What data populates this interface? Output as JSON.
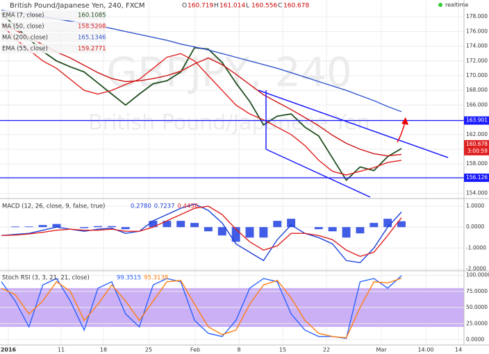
{
  "chart_data": [
    {
      "type": "line",
      "title": "British Pound/Japanese Yen, 240, FXCM",
      "watermark": "GBPJPY, 240",
      "watermark_subtitle": "British Pound/Japanese Yen",
      "status": "realtime",
      "ohlc_labels": [
        "O",
        "H",
        "L",
        "C"
      ],
      "ohlc": [
        160.719,
        161.014,
        160.556,
        160.678
      ],
      "countdown": "3:00:59",
      "levels": [
        {
          "value": 163.901,
          "color": "#1a1aff"
        },
        {
          "value": 156.126,
          "color": "#1a1aff"
        }
      ],
      "ylim": [
        153.4,
        179.9
      ],
      "yticks": [
        {
          "value": 154,
          "label": "154.000"
        },
        {
          "value": 156,
          "label": "156.000"
        },
        {
          "value": 158,
          "label": "158.000"
        },
        {
          "value": 160,
          "label": "160.000"
        },
        {
          "value": 162,
          "label": "162.000"
        },
        {
          "value": 164,
          "label": "164.000"
        },
        {
          "value": 166,
          "label": "166.000"
        },
        {
          "value": 168,
          "label": "168.000"
        },
        {
          "value": 170,
          "label": "170.000"
        },
        {
          "value": 172,
          "label": "172.000"
        },
        {
          "value": 174,
          "label": "174.000"
        },
        {
          "value": 176,
          "label": "176.000"
        },
        {
          "value": 178,
          "label": "178.000"
        }
      ],
      "series": [
        {
          "name": "EMA (7, close)",
          "color": "#1e4d1e",
          "last": 160.1085,
          "values": [
            178.5,
            176.7,
            175,
            173.3,
            172,
            171.2,
            170.5,
            169,
            167.5,
            166,
            167.5,
            168.9,
            169.3,
            170.5,
            173.8,
            173.6,
            171.8,
            169,
            166.5,
            163.3,
            164.5,
            164.8,
            163,
            161.8,
            158.8,
            155.8,
            157.6,
            157.1,
            159,
            160.1
          ]
        },
        {
          "name": "MA (50, close)",
          "color": "#e02020",
          "last": 158.5208,
          "values": [
            177,
            175,
            173.5,
            172,
            171,
            169.5,
            168,
            167.5,
            168,
            168.8,
            169.5,
            171,
            172.5,
            173,
            172,
            170,
            168,
            166,
            164.8,
            164,
            163,
            162,
            160.5,
            158.5,
            157,
            156.5,
            157,
            157.5,
            158.2,
            158.5
          ]
        },
        {
          "name": "MA (200, close)",
          "color": "#3355cc",
          "last": 165.1346,
          "values": [
            178.9,
            178.6,
            178.3,
            178,
            177.7,
            177.4,
            177.1,
            176.8,
            176.4,
            176,
            175.6,
            175.2,
            174.8,
            174.3,
            173.9,
            173.5,
            173,
            172.5,
            172,
            171.5,
            171,
            170.4,
            169.8,
            169.2,
            168.6,
            168,
            167.3,
            166.6,
            165.8,
            165.1
          ]
        },
        {
          "name": "EMA (55, close)",
          "color": "#cc1111",
          "last": 159.2771,
          "values": [
            177.1,
            176.2,
            175.2,
            174.2,
            173.2,
            172.4,
            171.4,
            170.4,
            169.6,
            169.2,
            169.3,
            169.6,
            170,
            170.6,
            171.6,
            172.4,
            171.5,
            170.2,
            168.8,
            167.4,
            166.4,
            165.4,
            164.3,
            163.2,
            161.9,
            160.8,
            160,
            159.4,
            159.1,
            159.3
          ]
        }
      ]
    },
    {
      "type": "line",
      "title": "MACD (12, 26, close, 9, false, true)",
      "ylim": [
        -2.05,
        1.3
      ],
      "yticks": [
        {
          "value": 1,
          "label": "1.0000"
        },
        {
          "value": 0,
          "label": "0.0000"
        },
        {
          "value": -1,
          "label": "-1.0000"
        },
        {
          "value": -2,
          "label": "-2.0000"
        }
      ],
      "series": [
        {
          "kind": "bar",
          "color": "#2040e0",
          "last": {
            "value": 0.278,
            "label": "0.2780"
          },
          "values": [
            0,
            0.03,
            0.03,
            0.1,
            0.15,
            0,
            -0.05,
            0.05,
            0.05,
            -0.1,
            0,
            0.3,
            0.3,
            0.3,
            0.2,
            -0.2,
            -0.4,
            -0.7,
            -0.5,
            -0.5,
            0.3,
            0.4,
            0,
            -0.1,
            -0.2,
            -0.5,
            -0.3,
            0.2,
            0.4,
            0.28
          ]
        },
        {
          "color": "#1a3fd6",
          "last": 0.7237,
          "values": [
            -0.4,
            -0.35,
            -0.3,
            -0.15,
            0,
            -0.1,
            -0.2,
            -0.1,
            -0.05,
            -0.3,
            -0.2,
            0.3,
            0.6,
            0.9,
            1.1,
            0.8,
            0.2,
            -0.8,
            -1.2,
            -1.6,
            -0.6,
            0.1,
            -0.3,
            -0.5,
            -0.8,
            -1.6,
            -1.7,
            -1,
            0,
            0.72
          ]
        },
        {
          "color": "#e02020",
          "last": 0.4456,
          "values": [
            -0.4,
            -0.38,
            -0.33,
            -0.25,
            -0.15,
            -0.1,
            -0.15,
            -0.15,
            -0.1,
            -0.2,
            -0.2,
            0,
            0.3,
            0.6,
            0.9,
            1,
            0.6,
            -0.1,
            -0.7,
            -1.1,
            -0.9,
            -0.3,
            -0.3,
            -0.4,
            -0.6,
            -1.1,
            -1.4,
            -1.2,
            -0.4,
            0.45
          ]
        }
      ]
    },
    {
      "type": "line",
      "title": "Stoch RSI (3, 3, 21, 21, close)",
      "band": [
        20,
        80
      ],
      "band_color": "#cbb0f5",
      "ylim": [
        -7,
        106
      ],
      "yticks": [
        {
          "value": 100,
          "label": "100.0000"
        },
        {
          "value": 75,
          "label": "75.0000"
        },
        {
          "value": 50,
          "label": "50.0000"
        },
        {
          "value": 25,
          "label": "25.0000"
        },
        {
          "value": 0,
          "label": "0.0000"
        }
      ],
      "series": [
        {
          "color": "#2962ff",
          "last": 99.3515,
          "values": [
            90,
            60,
            20,
            85,
            95,
            60,
            15,
            80,
            90,
            40,
            20,
            85,
            95,
            90,
            30,
            10,
            5,
            30,
            80,
            95,
            90,
            40,
            15,
            5,
            5,
            2,
            90,
            95,
            80,
            99.35
          ]
        },
        {
          "color": "#ff7f0e",
          "last": 95.3138,
          "values": [
            80,
            70,
            40,
            60,
            90,
            75,
            30,
            55,
            85,
            60,
            30,
            60,
            90,
            92,
            55,
            20,
            8,
            15,
            55,
            85,
            92,
            65,
            30,
            10,
            5,
            3,
            50,
            90,
            88,
            95.31
          ]
        }
      ]
    }
  ],
  "time_axis": {
    "labels": [
      "2016",
      "11",
      "18",
      "25",
      "Feb",
      "8",
      "15",
      "22",
      "Mar",
      "14:00",
      "14"
    ]
  }
}
